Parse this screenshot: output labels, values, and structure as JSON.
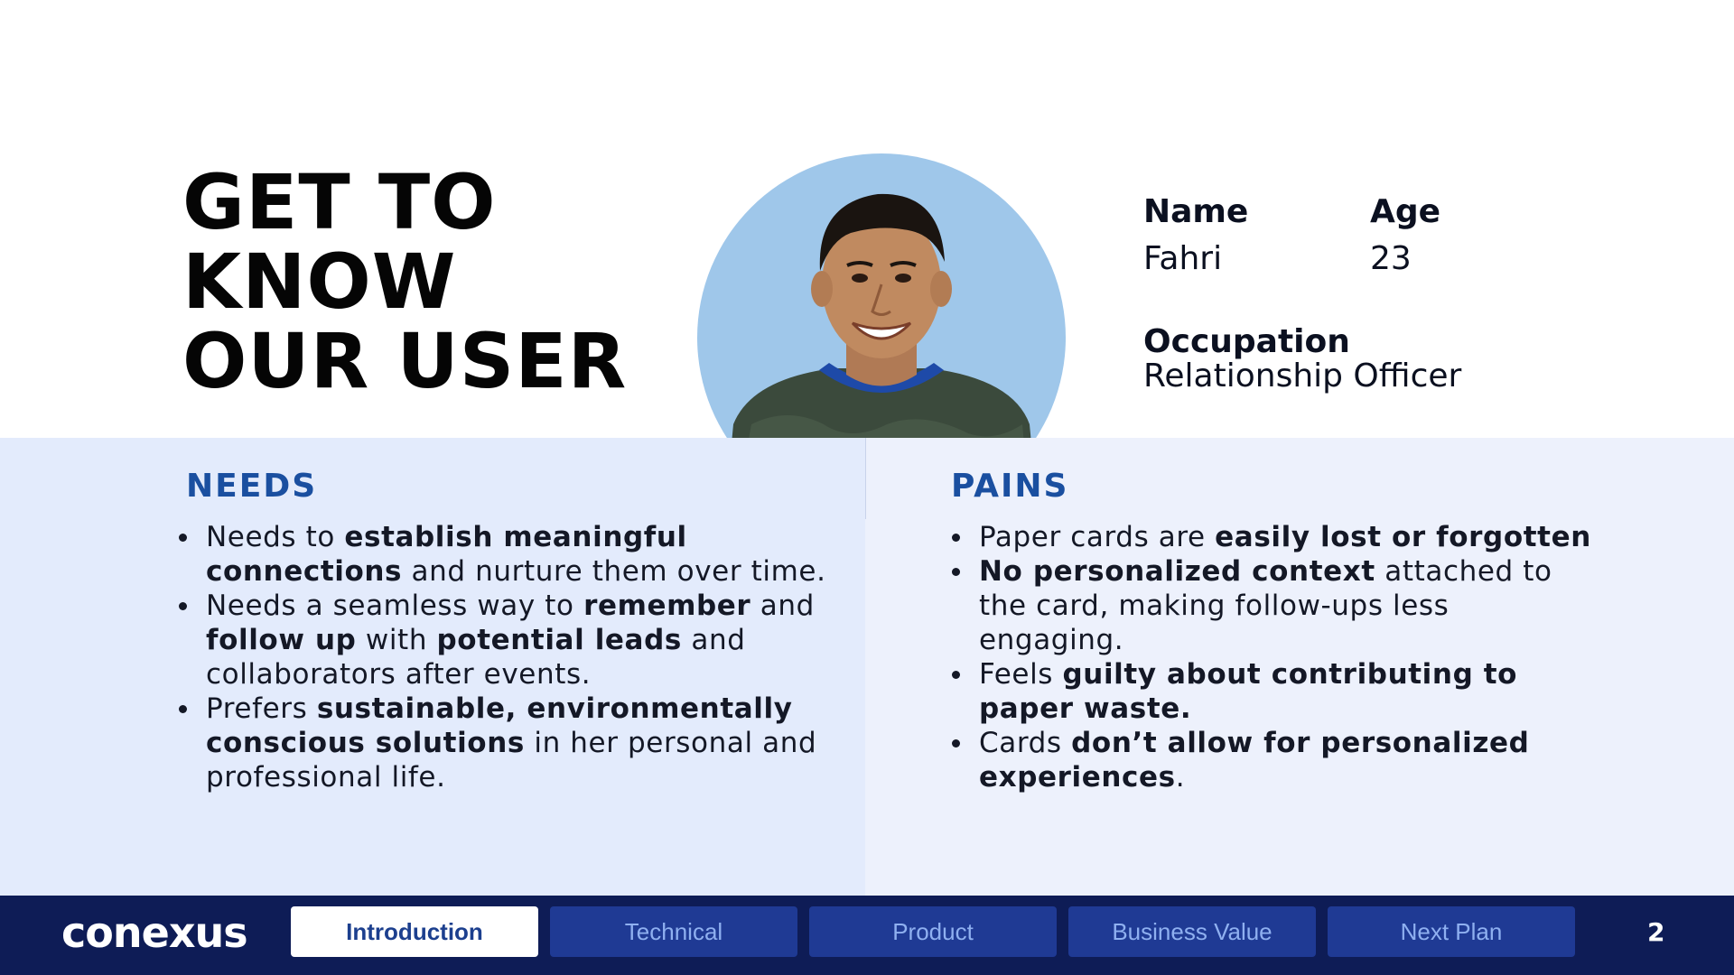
{
  "title": {
    "lines": [
      "GET TO",
      "KNOW",
      "OUR USER"
    ]
  },
  "profile": {
    "name_label": "Name",
    "name_value": "Fahri",
    "age_label": "Age",
    "age_value": "23",
    "occupation_label": "Occupation",
    "occupation_value": "Relationship Officer"
  },
  "needs": {
    "title": "NEEDS",
    "items": [
      [
        {
          "t": "Needs to "
        },
        {
          "t": "establish meaningful connections",
          "b": true
        },
        {
          "t": " and nurture them over time."
        }
      ],
      [
        {
          "t": "Needs a seamless way to "
        },
        {
          "t": "remember",
          "b": true
        },
        {
          "t": " and "
        },
        {
          "t": "follow up",
          "b": true
        },
        {
          "t": " with "
        },
        {
          "t": "potential leads",
          "b": true
        },
        {
          "t": " and collaborators after events."
        }
      ],
      [
        {
          "t": "Prefers "
        },
        {
          "t": "sustainable, environmentally conscious solutions",
          "b": true
        },
        {
          "t": " in her personal and professional life."
        }
      ]
    ]
  },
  "pains": {
    "title": "PAINS",
    "items": [
      [
        {
          "t": "Paper cards are "
        },
        {
          "t": "easily lost or forgotten",
          "b": true
        }
      ],
      [
        {
          "t": "No personalized context",
          "b": true
        },
        {
          "t": " attached to the card, making follow-ups less engaging."
        }
      ],
      [
        {
          "t": "Feels "
        },
        {
          "t": "guilty about contributing to paper waste.",
          "b": true
        }
      ],
      [
        {
          "t": "Cards "
        },
        {
          "t": "don’t allow for personalized experiences",
          "b": true
        },
        {
          "t": "."
        }
      ]
    ]
  },
  "footer": {
    "logo": "conexus",
    "tabs": [
      {
        "label": "Introduction",
        "active": true
      },
      {
        "label": "Technical",
        "active": false
      },
      {
        "label": "Product",
        "active": false
      },
      {
        "label": "Business Value",
        "active": false
      },
      {
        "label": "Next Plan",
        "active": false
      }
    ],
    "page_number": "2"
  },
  "colors": {
    "accent": "#1a4fa0",
    "footer_bg": "#0e1c56",
    "tab_bg": "#1f3a94",
    "tab_text": "#8fb0f0",
    "needs_bg": "#e3ebfc",
    "pains_bg": "#edf1fc",
    "portrait_bg": "#9fc7ea"
  }
}
